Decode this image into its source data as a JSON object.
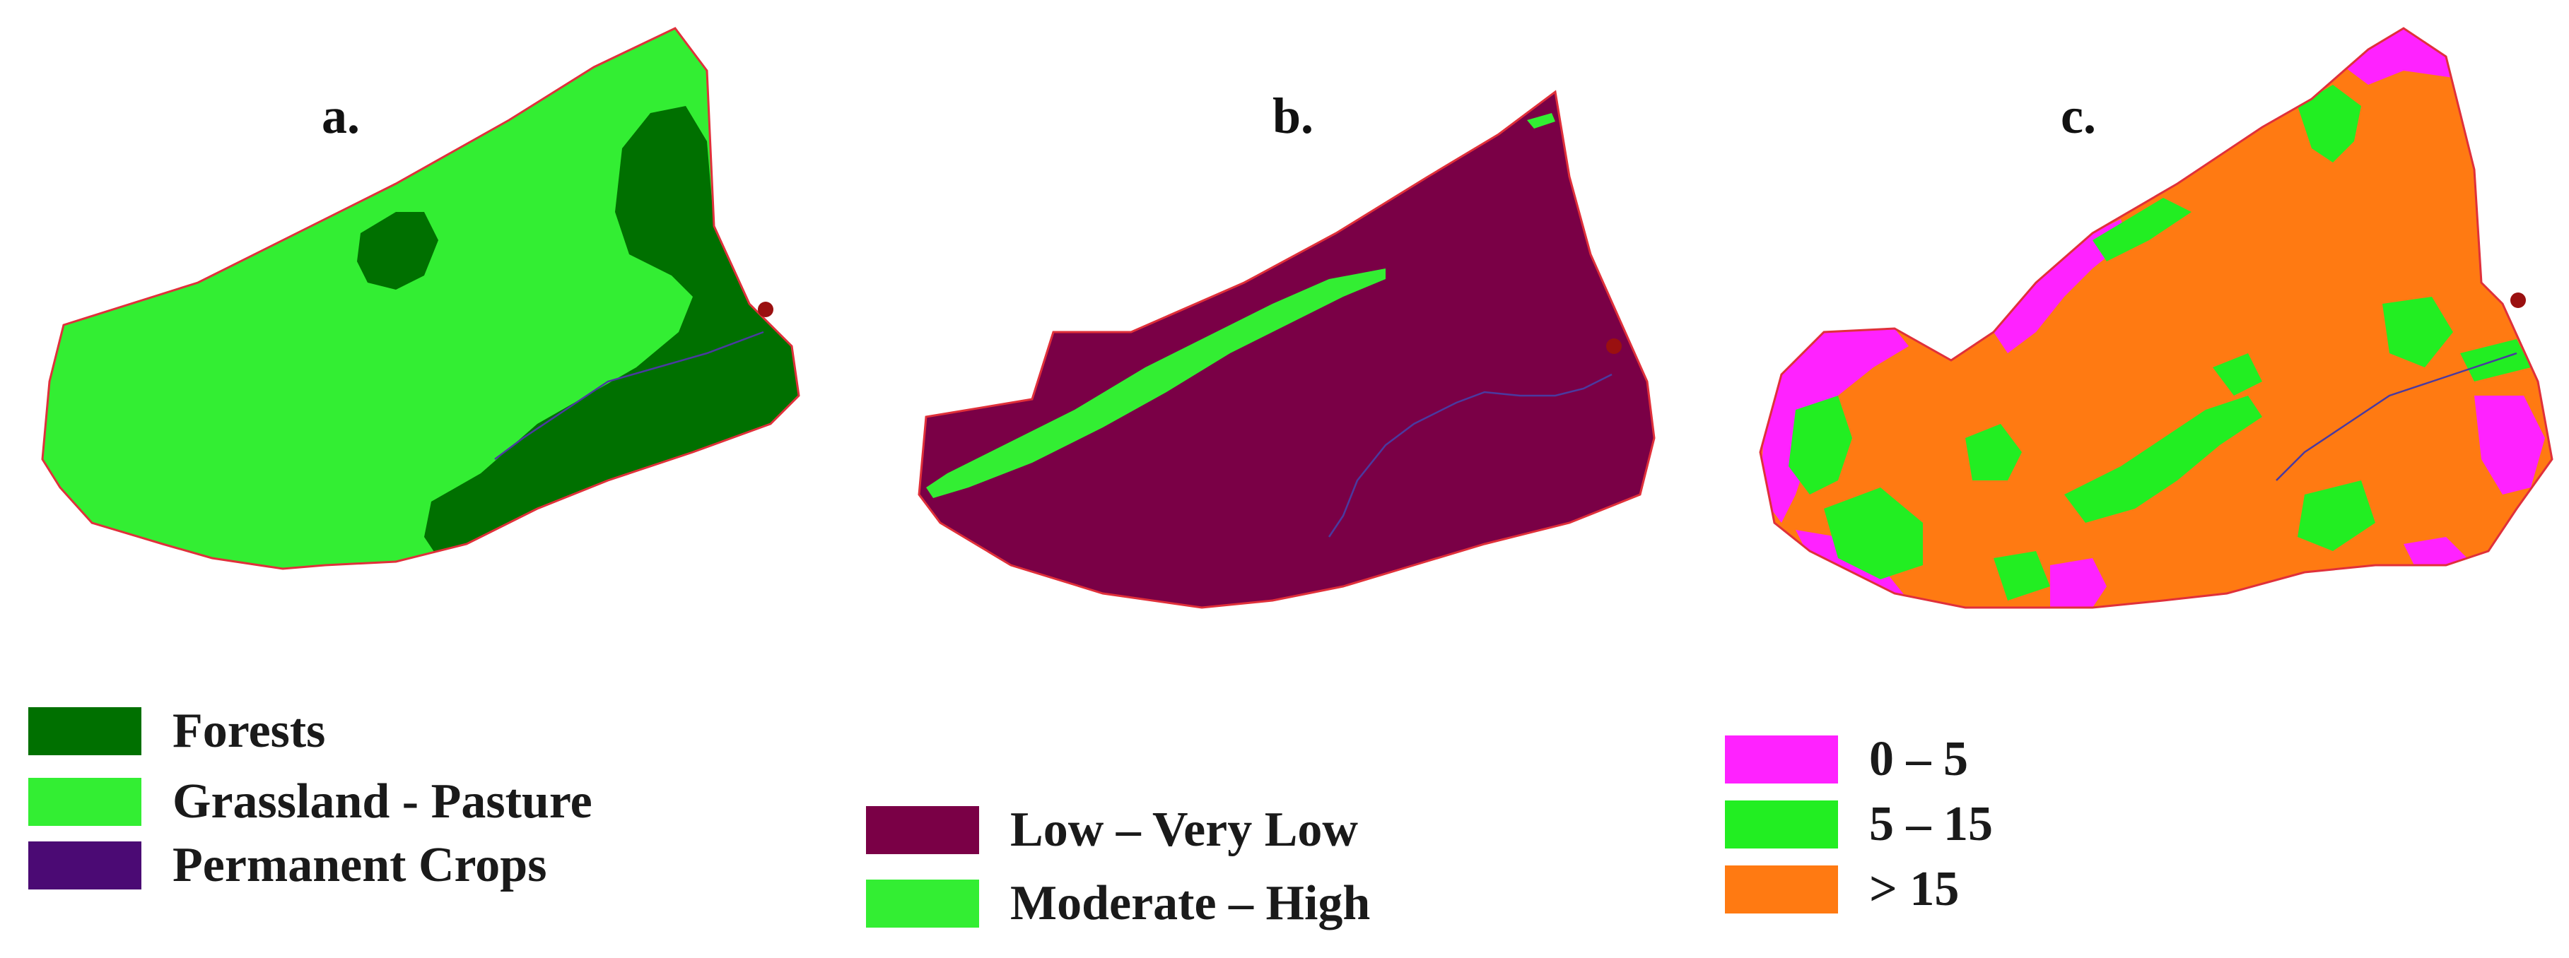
{
  "panels": [
    {
      "label": "a.",
      "legend": [
        {
          "text": "Forests",
          "color": "#007000"
        },
        {
          "text": "Grassland - Pasture",
          "color": "#33ee33"
        },
        {
          "text": "Permanent Crops",
          "color": "#4b0a74"
        }
      ]
    },
    {
      "label": "b.",
      "legend": [
        {
          "text": "Low – Very Low",
          "color": "#7a0046"
        },
        {
          "text": "Moderate – High",
          "color": "#33ee33"
        }
      ]
    },
    {
      "label": "c.",
      "legend": [
        {
          "text": "0 – 5",
          "color": "#ff22ff"
        },
        {
          "text": "5 – 15",
          "color": "#22ee22"
        },
        {
          "text": "> 15",
          "color": "#ff7a12"
        }
      ]
    }
  ],
  "map_colors": {
    "boundary": "#e0303a",
    "outlet": "#9a1010",
    "stream": "#4a3aa0"
  }
}
